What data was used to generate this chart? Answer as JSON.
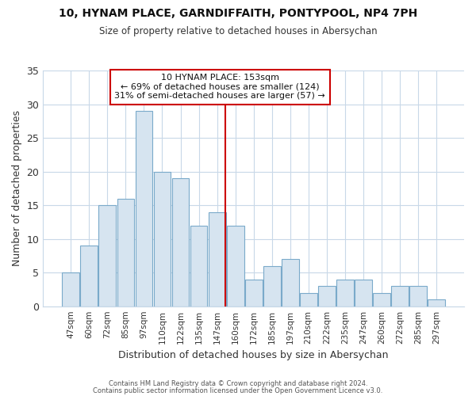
{
  "title_line1": "10, HYNAM PLACE, GARNDIFFAITH, PONTYPOOL, NP4 7PH",
  "title_line2": "Size of property relative to detached houses in Abersychan",
  "xlabel": "Distribution of detached houses by size in Abersychan",
  "ylabel": "Number of detached properties",
  "categories": [
    "47sqm",
    "60sqm",
    "72sqm",
    "85sqm",
    "97sqm",
    "110sqm",
    "122sqm",
    "135sqm",
    "147sqm",
    "160sqm",
    "172sqm",
    "185sqm",
    "197sqm",
    "210sqm",
    "222sqm",
    "235sqm",
    "247sqm",
    "260sqm",
    "272sqm",
    "285sqm",
    "297sqm"
  ],
  "values": [
    5,
    9,
    15,
    16,
    29,
    20,
    19,
    12,
    14,
    12,
    4,
    6,
    7,
    2,
    3,
    4,
    4,
    2,
    3,
    3,
    1
  ],
  "bar_color": "#d6e4f0",
  "bar_edge_color": "#7aaaca",
  "vline_color": "#cc0000",
  "annotation_text": "10 HYNAM PLACE: 153sqm\n← 69% of detached houses are smaller (124)\n31% of semi-detached houses are larger (57) →",
  "annotation_box_color": "#ffffff",
  "annotation_box_edge_color": "#cc0000",
  "ylim": [
    0,
    35
  ],
  "yticks": [
    0,
    5,
    10,
    15,
    20,
    25,
    30,
    35
  ],
  "background_color": "#ffffff",
  "grid_color": "#c8d8e8",
  "footer_line1": "Contains HM Land Registry data © Crown copyright and database right 2024.",
  "footer_line2": "Contains public sector information licensed under the Open Government Licence v3.0."
}
